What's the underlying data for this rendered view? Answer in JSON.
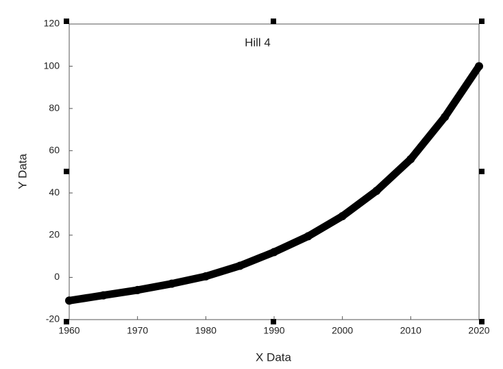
{
  "chart_data": {
    "type": "line",
    "title": "Hill 4",
    "x_label": "X Data",
    "y_label": "Y Data",
    "x": [
      1960,
      1965,
      1970,
      1975,
      1980,
      1985,
      1990,
      1995,
      2000,
      2005,
      2010,
      2015,
      2020
    ],
    "values": [
      -11,
      -8.5,
      -6,
      -3,
      0.5,
      5.5,
      12,
      19.5,
      29,
      41,
      56,
      76,
      100
    ],
    "color": "#000000",
    "xlim": [
      1960,
      2020
    ],
    "xticks": [
      1960,
      1970,
      1980,
      1990,
      2000,
      2010,
      2020
    ],
    "ylim": [
      -20,
      120
    ],
    "yticks": [
      -20,
      0,
      20,
      40,
      60,
      80,
      100,
      120
    ]
  }
}
